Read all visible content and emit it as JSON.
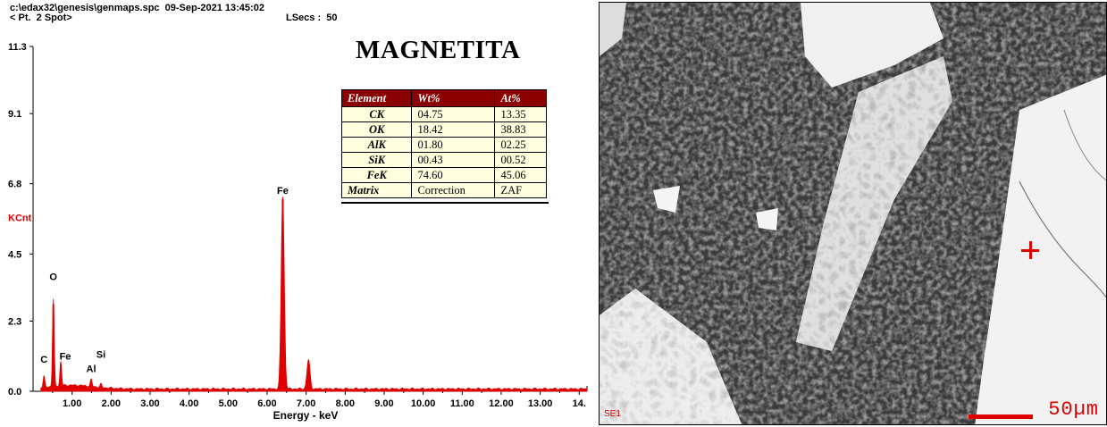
{
  "header": {
    "path_line": "c:\\edax32\\genesis\\genmaps.spc  09-Sep-2021 13:45:02",
    "spot_label": "< Pt.  2 Spot>",
    "lsecs_label": "LSecs :  50"
  },
  "title": "MAGNETITA",
  "table": {
    "headers": [
      "Element",
      "Wt%",
      "At%"
    ],
    "rows": [
      [
        "CK",
        "04.75",
        "13.35"
      ],
      [
        "OK",
        "18.42",
        "38.83"
      ],
      [
        "AlK",
        "01.80",
        "02.25"
      ],
      [
        "SiK",
        "00.43",
        "00.52"
      ],
      [
        "FeK",
        "74.60",
        "45.06"
      ],
      [
        "Matrix",
        "Correction",
        "ZAF"
      ]
    ]
  },
  "chart_data": {
    "type": "line",
    "title": "",
    "xlabel": "Energy - keV",
    "ylabel": "KCnt",
    "xlim": [
      0,
      14.2
    ],
    "ylim": [
      0,
      11.3
    ],
    "x_ticks": [
      "1.00",
      "2.00",
      "3.00",
      "4.00",
      "5.00",
      "6.00",
      "7.00",
      "8.00",
      "9.00",
      "10.00",
      "11.00",
      "12.00",
      "13.00",
      "14."
    ],
    "y_ticks": [
      "0.0",
      "2.3",
      "4.5",
      "6.8",
      "9.1",
      "11.3"
    ],
    "peaks": [
      {
        "label": "C",
        "energy": 0.28,
        "height": 0.35
      },
      {
        "label": "O",
        "energy": 0.52,
        "height": 2.85
      },
      {
        "label": "Fe",
        "energy": 0.71,
        "height": 0.8
      },
      {
        "label": "Al",
        "energy": 1.49,
        "height": 0.22
      },
      {
        "label": "Si",
        "energy": 1.74,
        "height": 0.1
      },
      {
        "label": "Fe",
        "energy": 6.4,
        "height": 6.3
      },
      {
        "label": "",
        "energy": 7.06,
        "height": 0.95
      }
    ],
    "peak_labels": [
      "C",
      "O",
      "Fe",
      "Al",
      "Si",
      "Fe"
    ],
    "background_level": 0.08,
    "line_color": "#e00000"
  },
  "sem_image": {
    "detector_label": "SE1",
    "scale_label": "50µm",
    "marker_color": "#e00000"
  }
}
